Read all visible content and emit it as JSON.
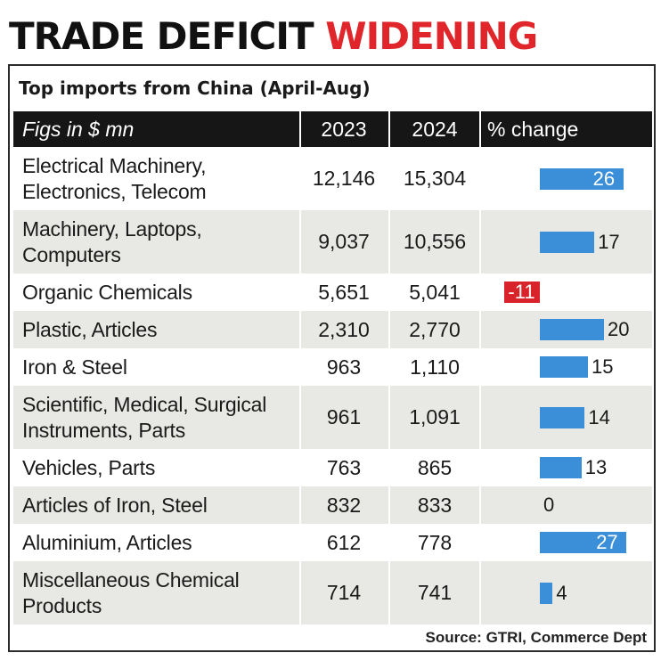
{
  "headline": {
    "part1": "TRADE DEFICIT",
    "part2": "WIDENING"
  },
  "subtitle": "Top imports from China (April-Aug)",
  "colors": {
    "headline_accent": "#e0262a",
    "bar_positive": "#3b8fd8",
    "bar_negative": "#d9232a",
    "header_bg": "#161616",
    "row_shade": "#e8e8e5"
  },
  "chart_data": {
    "type": "table",
    "title": "Top imports from China (April-Aug)",
    "columns": [
      "Figs in $ mn",
      "2023",
      "2024",
      "% change"
    ],
    "rows": [
      {
        "label": "Electrical Machinery, Electronics, Telecom",
        "v2023": "12,146",
        "v2024": "15,304",
        "pct": 26
      },
      {
        "label": "Machinery, Laptops, Computers",
        "v2023": "9,037",
        "v2024": "10,556",
        "pct": 17
      },
      {
        "label": "Organic Chemicals",
        "v2023": "5,651",
        "v2024": "5,041",
        "pct": -11
      },
      {
        "label": "Plastic, Articles",
        "v2023": "2,310",
        "v2024": "2,770",
        "pct": 20
      },
      {
        "label": "Iron & Steel",
        "v2023": "963",
        "v2024": "1,110",
        "pct": 15
      },
      {
        "label": "Scientific, Medical, Surgical Instruments, Parts",
        "v2023": "961",
        "v2024": "1,091",
        "pct": 14
      },
      {
        "label": "Vehicles, Parts",
        "v2023": "763",
        "v2024": "865",
        "pct": 13
      },
      {
        "label": "Articles of Iron, Steel",
        "v2023": "832",
        "v2024": "833",
        "pct": 0
      },
      {
        "label": "Aluminium, Articles",
        "v2023": "612",
        "v2024": "778",
        "pct": 27
      },
      {
        "label": "Miscellaneous Chemical Products",
        "v2023": "714",
        "v2024": "741",
        "pct": 4
      }
    ]
  },
  "source": "Source: GTRI, Commerce Dept"
}
